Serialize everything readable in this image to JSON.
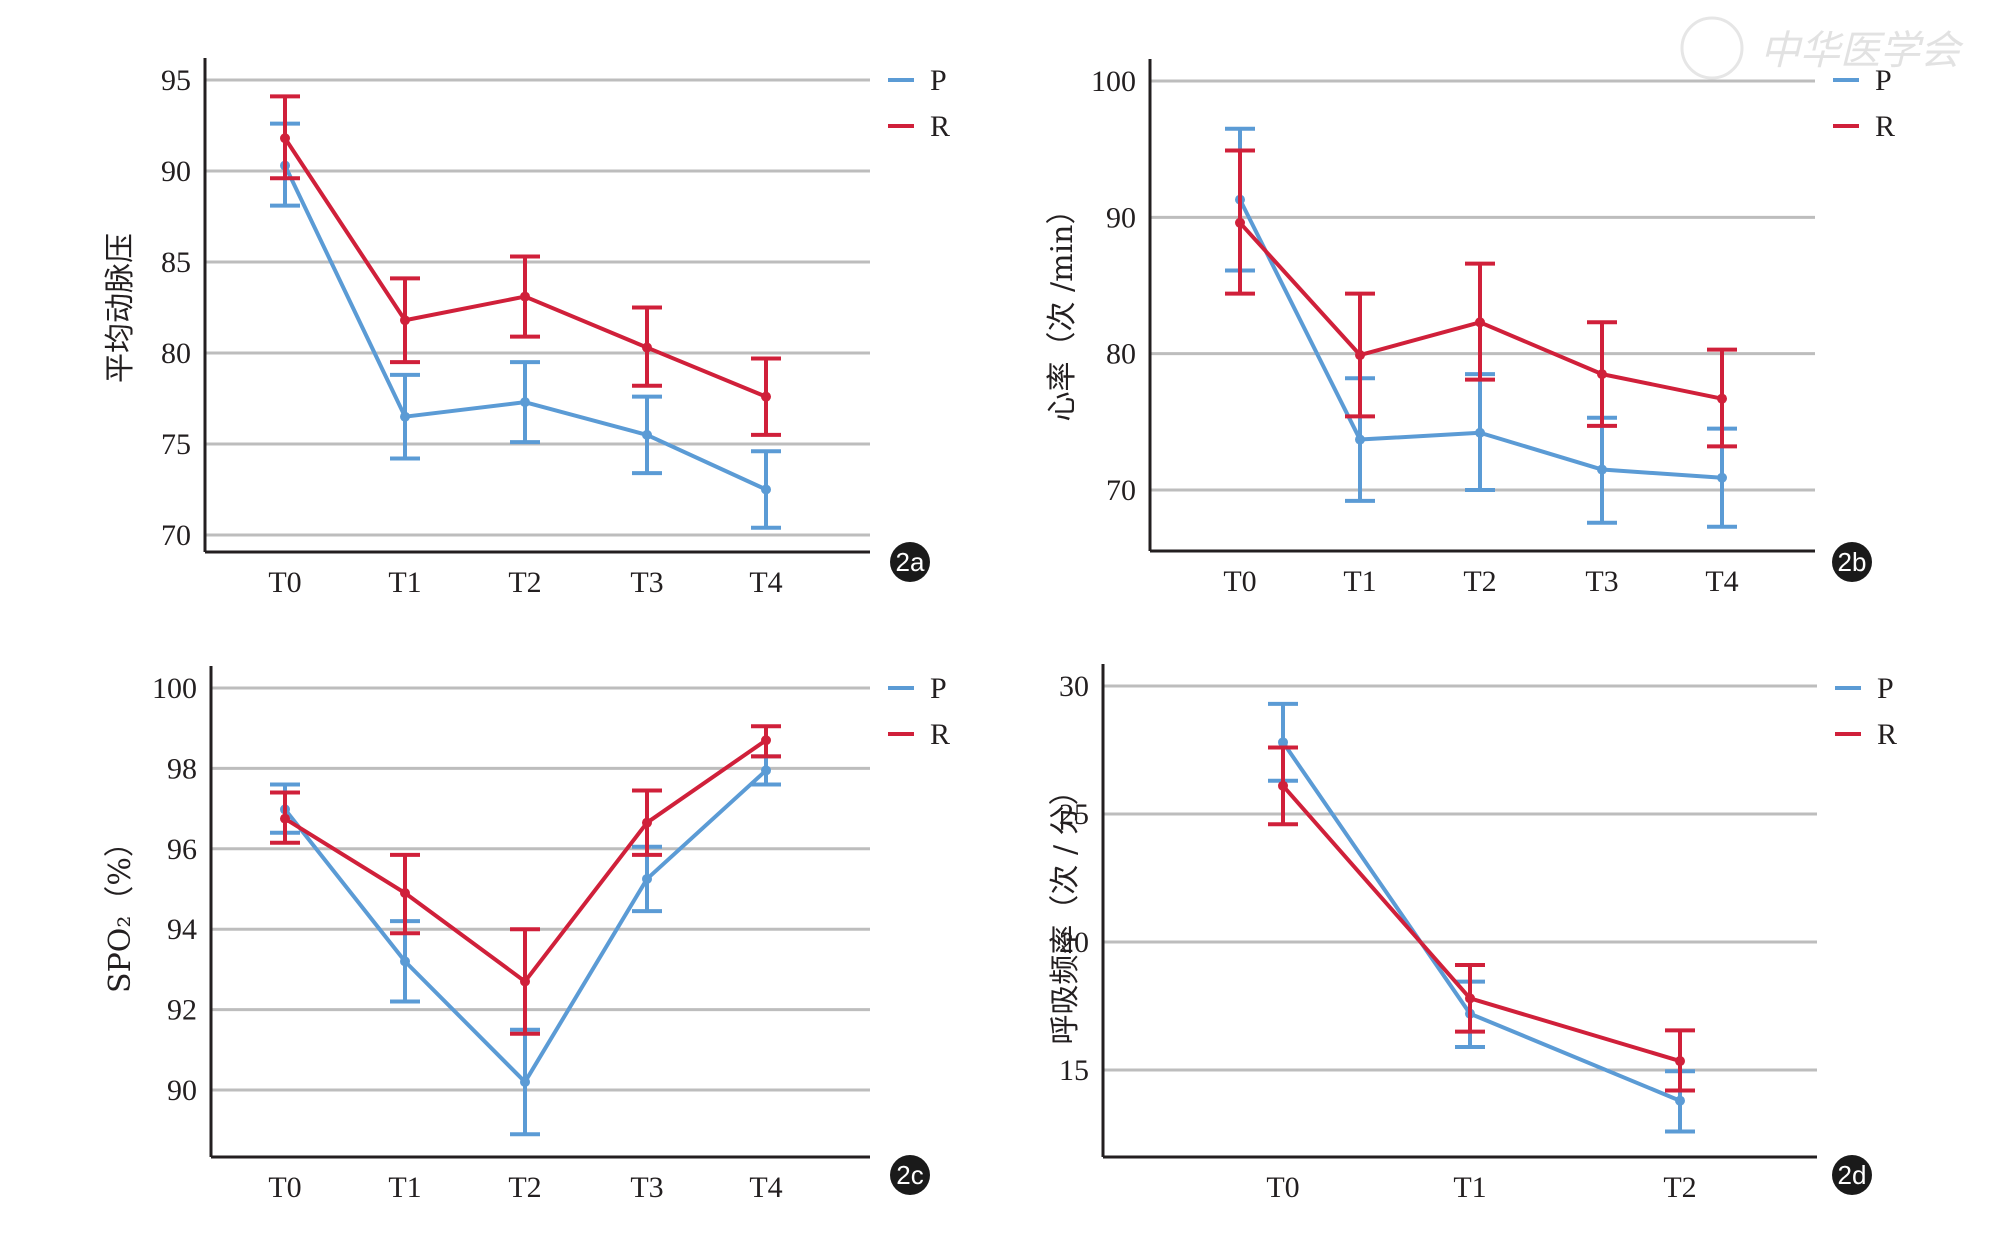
{
  "figure": {
    "watermark": "中华医学会",
    "colors": {
      "P": "#5b9bd5",
      "R": "#d0203a",
      "grid": "#bdbdbd",
      "axis": "#231f20",
      "badge": "#1a1a1a"
    }
  },
  "chart_data": [
    {
      "id": "2a",
      "type": "line",
      "badge": "2a",
      "title": "",
      "xlabel": "",
      "ylabel": "平均动脉压",
      "categories": [
        "T0",
        "T1",
        "T2",
        "T3",
        "T4"
      ],
      "yticks": [
        70,
        75,
        80,
        85,
        90,
        95
      ],
      "ylim": [
        69,
        96.5
      ],
      "grid": true,
      "legend": {
        "placement": "top-right",
        "entries": [
          "P",
          "R"
        ]
      },
      "series": [
        {
          "name": "P",
          "values": [
            90.3,
            76.5,
            77.3,
            75.5,
            72.5
          ],
          "err_upper": [
            92.6,
            78.8,
            79.5,
            77.6,
            74.6
          ],
          "err_lower": [
            88.1,
            74.2,
            75.1,
            73.4,
            70.4
          ]
        },
        {
          "name": "R",
          "values": [
            91.8,
            81.8,
            83.1,
            80.3,
            77.6
          ],
          "err_upper": [
            94.1,
            84.1,
            85.3,
            82.5,
            79.7
          ],
          "err_lower": [
            89.6,
            79.5,
            80.9,
            78.2,
            75.5
          ]
        }
      ]
    },
    {
      "id": "2b",
      "type": "line",
      "badge": "2b",
      "title": "",
      "xlabel": "",
      "ylabel": "心率（次 /min）",
      "categories": [
        "T0",
        "T1",
        "T2",
        "T3",
        "T4"
      ],
      "yticks": [
        70,
        80,
        90,
        100
      ],
      "ylim": [
        65,
        101.5
      ],
      "grid": true,
      "legend": {
        "placement": "top-right",
        "entries": [
          "P",
          "R"
        ]
      },
      "series": [
        {
          "name": "P",
          "values": [
            91.3,
            73.7,
            74.2,
            71.5,
            70.9
          ],
          "err_upper": [
            96.5,
            78.2,
            78.5,
            75.3,
            74.5
          ],
          "err_lower": [
            86.1,
            69.2,
            70.0,
            67.6,
            67.3
          ]
        },
        {
          "name": "R",
          "values": [
            89.6,
            79.9,
            82.3,
            78.5,
            76.7
          ],
          "err_upper": [
            94.9,
            84.4,
            86.6,
            82.3,
            80.3
          ],
          "err_lower": [
            84.4,
            75.4,
            78.1,
            74.7,
            73.2
          ]
        }
      ]
    },
    {
      "id": "2c",
      "type": "line",
      "badge": "2c",
      "title": "",
      "xlabel": "",
      "ylabel": "SPO₂（%）",
      "categories": [
        "T0",
        "T1",
        "T2",
        "T3",
        "T4"
      ],
      "yticks": [
        90,
        92,
        94,
        96,
        98,
        100
      ],
      "ylim": [
        88.3,
        100.5
      ],
      "grid": true,
      "legend": {
        "placement": "top-right",
        "entries": [
          "P",
          "R"
        ]
      },
      "series": [
        {
          "name": "P",
          "values": [
            96.98,
            93.2,
            90.2,
            95.25,
            97.95
          ],
          "err_upper": [
            97.6,
            94.2,
            91.5,
            96.05,
            98.3
          ],
          "err_lower": [
            96.4,
            92.2,
            88.9,
            94.45,
            97.6
          ]
        },
        {
          "name": "R",
          "values": [
            96.75,
            94.9,
            92.7,
            96.65,
            98.7
          ],
          "err_upper": [
            97.4,
            95.85,
            94.0,
            97.45,
            99.05
          ],
          "err_lower": [
            96.15,
            93.9,
            91.4,
            95.85,
            98.3
          ]
        }
      ]
    },
    {
      "id": "2d",
      "type": "line",
      "badge": "2d",
      "title": "",
      "xlabel": "",
      "ylabel": "呼吸频率（次 / 分）",
      "categories": [
        "T0",
        "T1",
        "T2"
      ],
      "yticks": [
        15,
        20,
        25,
        30
      ],
      "ylim": [
        11.6,
        30.5
      ],
      "grid": true,
      "legend": {
        "placement": "top-right",
        "entries": [
          "P",
          "R"
        ]
      },
      "series": [
        {
          "name": "P",
          "values": [
            27.8,
            17.2,
            13.8
          ],
          "err_upper": [
            29.3,
            18.45,
            14.95
          ],
          "err_lower": [
            26.3,
            15.9,
            12.6
          ]
        },
        {
          "name": "R",
          "values": [
            26.1,
            17.8,
            15.35
          ],
          "err_upper": [
            27.6,
            19.1,
            16.55
          ],
          "err_lower": [
            24.6,
            16.5,
            14.2
          ]
        }
      ]
    }
  ]
}
